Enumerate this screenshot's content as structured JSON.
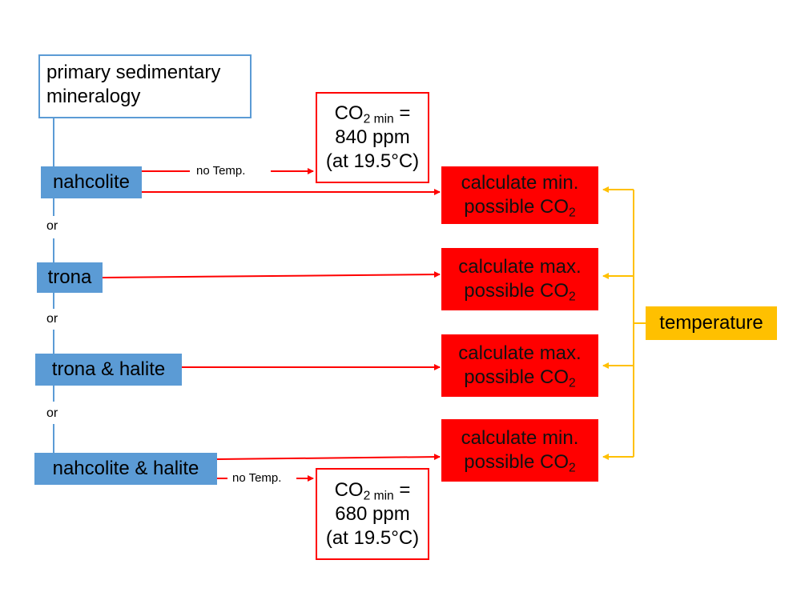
{
  "start_box": "primary sedimentary mineralogy",
  "minerals": [
    "nahcolite",
    "trona",
    "trona & halite",
    "nahcolite & halite"
  ],
  "or_label": "or",
  "no_temp_label": "no Temp.",
  "co2_min_boxes": [
    {
      "value": "840 ppm",
      "condition": "(at 19.5°C)"
    },
    {
      "value": "680 ppm",
      "condition": "(at 19.5°C)"
    }
  ],
  "co2_symbol": "CO",
  "co2_sub": "2",
  "co2_min_sub": "2 min",
  "equals": " =",
  "calc_boxes": [
    {
      "line1": "calculate min.",
      "line2": "possible CO"
    },
    {
      "line1": "calculate max.",
      "line2": "possible CO"
    },
    {
      "line1": "calculate max.",
      "line2": "possible CO"
    },
    {
      "line1": "calculate min.",
      "line2": "possible CO"
    }
  ],
  "temperature": "temperature",
  "colors": {
    "mineral_fill": "#5b9bd5",
    "calc_fill": "#ff0000",
    "temperature_fill": "#ffc000",
    "arrow_red": "#ff0000",
    "arrow_gold": "#ffc000"
  }
}
